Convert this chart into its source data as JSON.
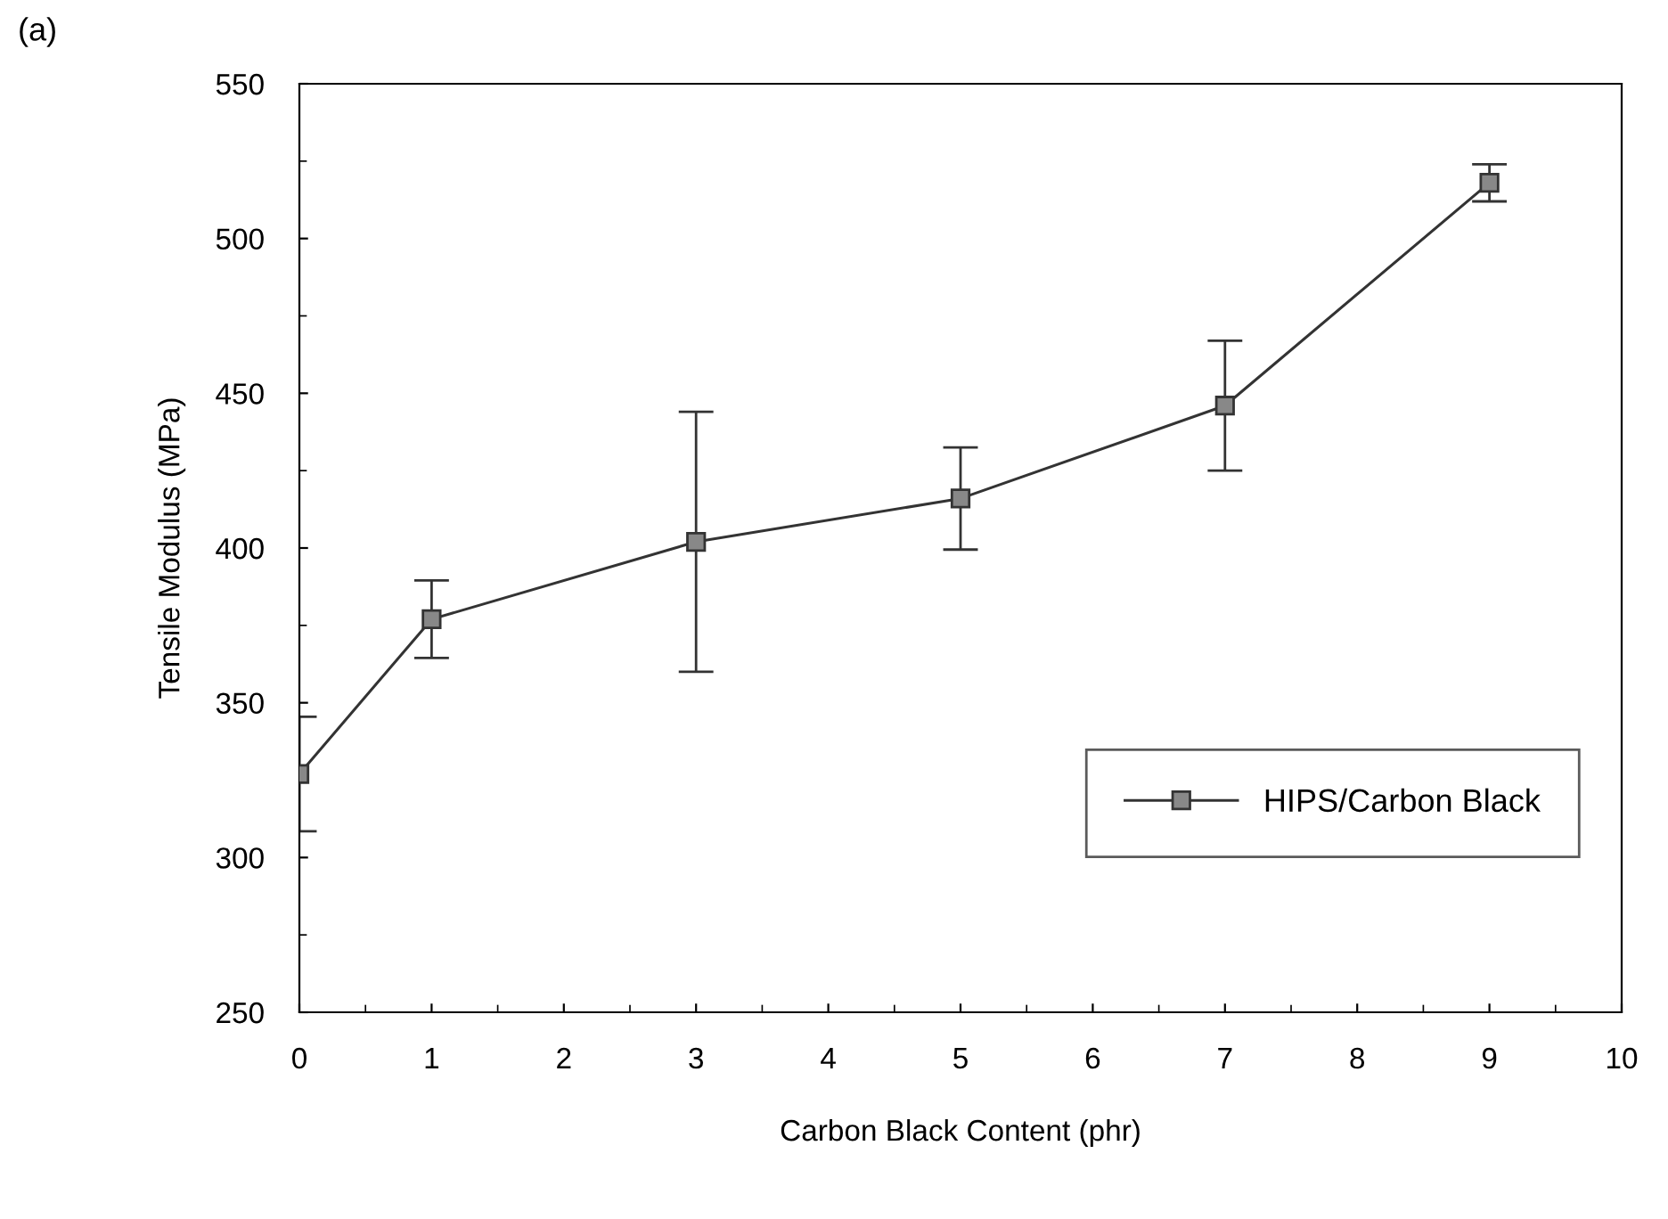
{
  "chart_data": {
    "type": "line",
    "title": "(a)",
    "xlabel": "Carbon Black Content (phr)",
    "ylabel": "Tensile Modulus (MPa)",
    "x": [
      0,
      1,
      3,
      5,
      7,
      9
    ],
    "series": [
      {
        "name": "HIPS/Carbon Black",
        "color": "#333333",
        "values": [
          327,
          377,
          402,
          416,
          446,
          518
        ],
        "errors": [
          18.5,
          12.5,
          42,
          16.5,
          21,
          6
        ]
      }
    ],
    "xlim": [
      0,
      10
    ],
    "xticks": [
      0,
      1,
      2,
      3,
      4,
      5,
      6,
      7,
      8,
      9,
      10
    ],
    "ylim": [
      250,
      550
    ],
    "yticks": [
      250,
      300,
      350,
      400,
      450,
      500,
      550
    ],
    "grid": false,
    "legend": "lower right",
    "marker": "square",
    "line_style": "solid"
  }
}
